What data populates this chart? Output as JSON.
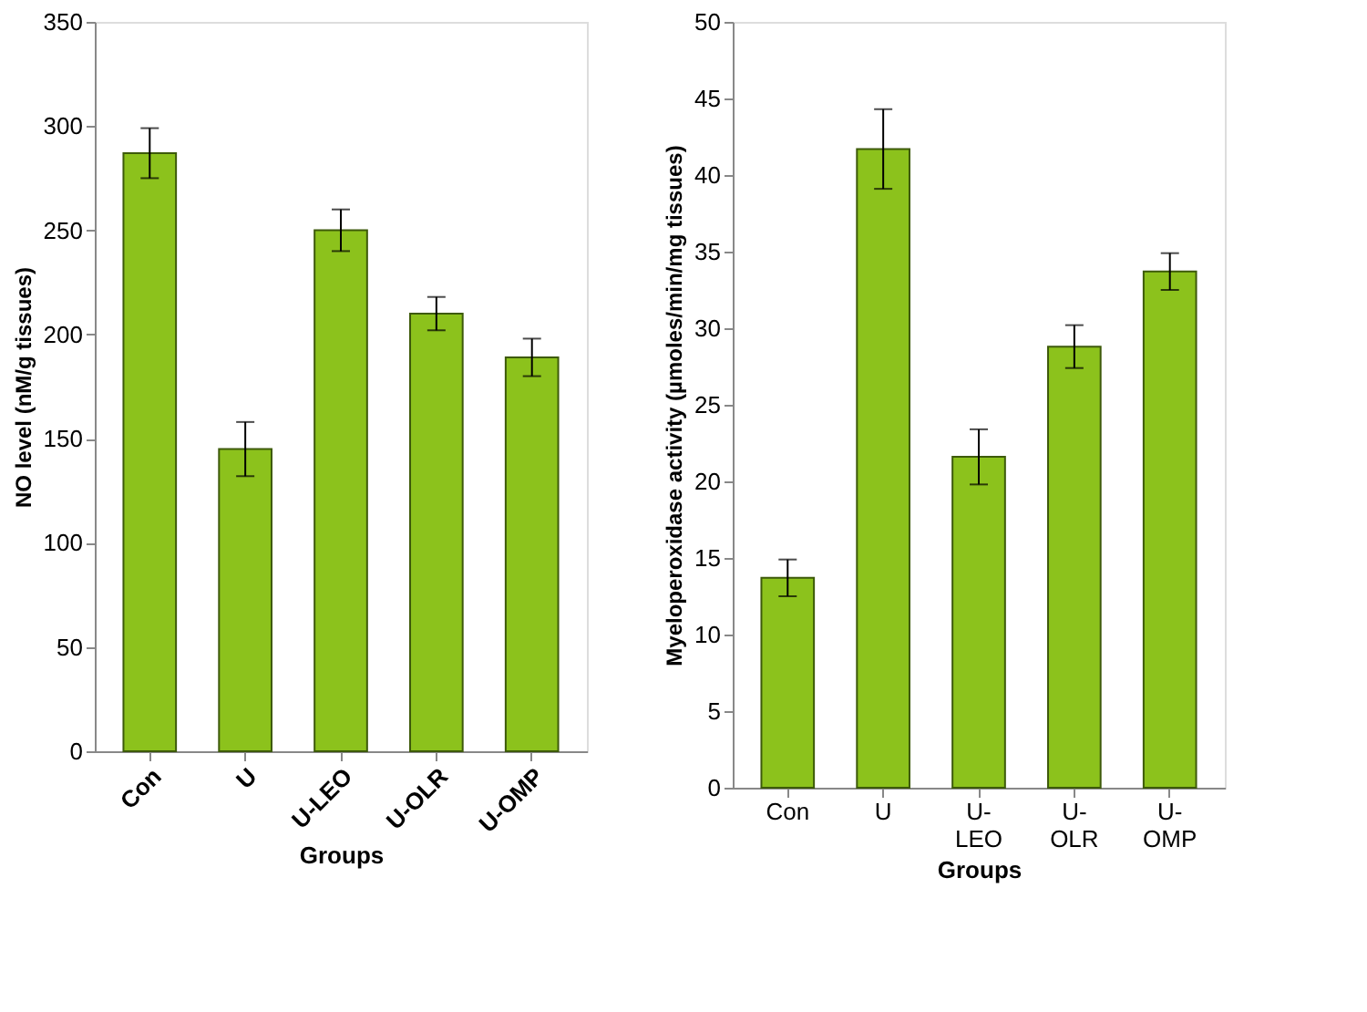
{
  "chart_data": [
    {
      "type": "bar",
      "xlabel": "Groups",
      "ylabel": "NO level (nM/g tissues)",
      "categories": [
        "Con",
        "U",
        "U-LEO",
        "U-OLR",
        "U-OMP"
      ],
      "series": [
        {
          "color": "#8cc21c",
          "values": [
            287,
            145,
            250,
            210,
            189
          ],
          "errors": [
            12,
            13,
            10,
            8,
            9
          ]
        }
      ],
      "ylim": [
        0,
        350
      ],
      "yticks": [
        0,
        50,
        100,
        150,
        200,
        250,
        300,
        350
      ],
      "grid": false
    },
    {
      "type": "bar",
      "xlabel": "Groups",
      "ylabel": "Myeloperoxidase activity (µmoles/min/mg tissues)",
      "categories": [
        "Con",
        "U",
        "U-LEO",
        "U-OLR",
        "U-OMP"
      ],
      "series": [
        {
          "color": "#8cc21c",
          "values": [
            13.7,
            41.7,
            21.6,
            28.8,
            33.7
          ],
          "errors": [
            1.2,
            2.6,
            1.8,
            1.4,
            1.2
          ]
        }
      ],
      "ylim": [
        0,
        50
      ],
      "yticks": [
        0,
        5,
        10,
        15,
        20,
        25,
        30,
        35,
        40,
        45,
        50
      ],
      "grid": false
    }
  ]
}
